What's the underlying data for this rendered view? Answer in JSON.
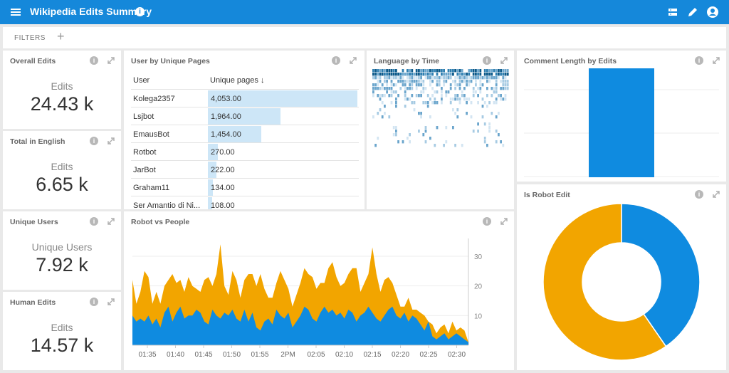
{
  "header": {
    "title": "Wikipedia Edits Summary",
    "info": "i"
  },
  "filters": {
    "label": "FILTERS",
    "add": "+"
  },
  "cards": {
    "overall": {
      "title": "Overall Edits",
      "label": "Edits",
      "value": "24.43 k"
    },
    "english": {
      "title": "Total in English",
      "label": "Edits",
      "value": "6.65 k"
    },
    "unique": {
      "title": "Unique Users",
      "label": "Unique Users",
      "value": "7.92 k"
    },
    "human": {
      "title": "Human Edits",
      "label": "Edits",
      "value": "14.57 k"
    },
    "pages": {
      "title": "User by Unique Pages",
      "col_user": "User",
      "col_pages": "Unique pages ↓",
      "rows": [
        {
          "user": "Kolega2357",
          "value": "4,053.00",
          "num": 4053
        },
        {
          "user": "Lsjbot",
          "value": "1,964.00",
          "num": 1964
        },
        {
          "user": "EmausBot",
          "value": "1,454.00",
          "num": 1454
        },
        {
          "user": "Rotbot",
          "value": "270.00",
          "num": 270
        },
        {
          "user": "JarBot",
          "value": "222.00",
          "num": 222
        },
        {
          "user": "Graham11",
          "value": "134.00",
          "num": 134
        },
        {
          "user": "Ser Amantio di Ni...",
          "value": "108.00",
          "num": 108
        }
      ]
    },
    "language": {
      "title": "Language by Time"
    },
    "comment": {
      "title": "Comment Length by Edits"
    },
    "robot_people": {
      "title": "Robot vs People"
    },
    "is_robot": {
      "title": "Is Robot Edit"
    }
  },
  "chart_data": [
    {
      "type": "area",
      "title": "Robot vs People",
      "x_ticks": [
        "01:35",
        "01:40",
        "01:45",
        "01:50",
        "01:55",
        "2PM",
        "02:05",
        "02:10",
        "02:15",
        "02:20",
        "02:25",
        "02:30"
      ],
      "y_ticks": [
        10,
        20,
        30
      ],
      "ylim": [
        0,
        36
      ],
      "series": [
        {
          "color": "#0f8be0",
          "values": [
            10,
            8,
            9,
            8,
            10,
            7,
            9,
            6,
            11,
            13,
            8,
            11,
            13,
            9,
            10,
            10,
            12,
            11,
            8,
            7,
            12,
            10,
            9,
            11,
            10,
            12,
            9,
            8,
            12,
            8,
            11,
            6,
            5,
            8,
            9,
            7,
            12,
            10,
            9,
            11,
            6,
            8,
            10,
            13,
            12,
            9,
            8,
            11,
            13,
            11,
            12,
            10,
            11,
            9,
            12,
            11,
            8,
            10,
            11,
            13,
            11,
            9,
            8,
            10,
            12,
            13,
            10,
            9,
            11,
            8,
            10,
            9,
            7,
            5,
            8,
            3,
            2,
            3,
            4,
            2,
            3,
            4,
            3,
            2,
            1
          ]
        },
        {
          "color": "#f2a500",
          "values": [
            22,
            14,
            18,
            25,
            23,
            14,
            18,
            14,
            20,
            22,
            24,
            21,
            22,
            18,
            23,
            20,
            19,
            18,
            22,
            23,
            20,
            24,
            34,
            20,
            17,
            25,
            22,
            16,
            22,
            24,
            24,
            20,
            24,
            19,
            16,
            16,
            21,
            25,
            22,
            19,
            13,
            17,
            21,
            26,
            24,
            23,
            19,
            21,
            21,
            26,
            28,
            23,
            20,
            21,
            24,
            26,
            26,
            18,
            21,
            24,
            33,
            24,
            18,
            22,
            23,
            21,
            17,
            13,
            13,
            16,
            12,
            12,
            11,
            10,
            8,
            7,
            4,
            6,
            7,
            4,
            8,
            5,
            6,
            5,
            1
          ]
        }
      ]
    },
    {
      "type": "bar",
      "title": "Comment Length by Edits",
      "values": [
        1
      ]
    },
    {
      "type": "pie",
      "title": "Is Robot Edit",
      "slices": [
        {
          "value": 40.4,
          "color": "#0f8be0"
        },
        {
          "value": 59.6,
          "color": "#f2a500"
        }
      ]
    },
    {
      "type": "heatmap",
      "title": "Language by Time"
    }
  ]
}
